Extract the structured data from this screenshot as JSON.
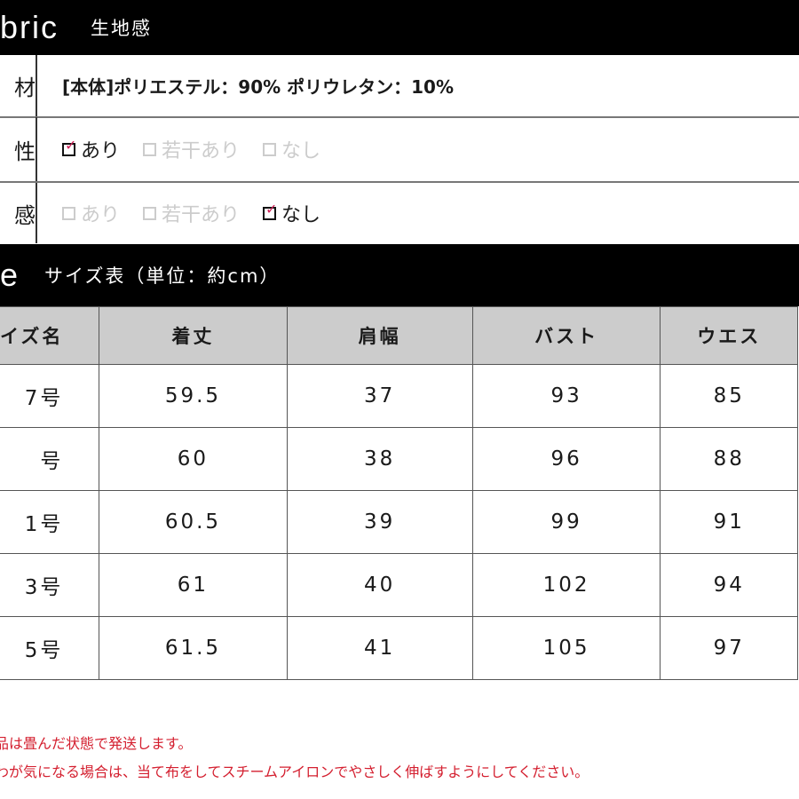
{
  "fabric": {
    "title_en": "bric",
    "title_jp": "生地感",
    "rows": [
      {
        "label": "材",
        "value": "[本体]ポリエステル：90% ポリウレタン：10%"
      },
      {
        "label": "性",
        "options": [
          {
            "label": "あり",
            "checked": true
          },
          {
            "label": "若干あり",
            "checked": false
          },
          {
            "label": "なし",
            "checked": false
          }
        ]
      },
      {
        "label": "感",
        "options": [
          {
            "label": "あり",
            "checked": false
          },
          {
            "label": "若干あり",
            "checked": false
          },
          {
            "label": "なし",
            "checked": true
          }
        ]
      }
    ]
  },
  "size": {
    "title_en": "e",
    "title_jp": "サイズ表（単位：約cm）",
    "headers": [
      "イズ名",
      "着丈",
      "肩幅",
      "バスト",
      "ウエス"
    ],
    "rows": [
      [
        "7号",
        "59.5",
        "37",
        "93",
        "85"
      ],
      [
        "号",
        "60",
        "38",
        "96",
        "88"
      ],
      [
        "1号",
        "60.5",
        "39",
        "99",
        "91"
      ],
      [
        "3号",
        "61",
        "40",
        "102",
        "94"
      ],
      [
        "5号",
        "61.5",
        "41",
        "105",
        "97"
      ]
    ]
  },
  "notes": [
    "品は畳んだ状態で発送します。",
    "わが気になる場合は、当て布をしてスチームアイロンでやさしく伸ばすようにしてください。"
  ],
  "colors": {
    "check": "#d0245a",
    "note": "#d42030",
    "header_bg": "#cccccc"
  }
}
